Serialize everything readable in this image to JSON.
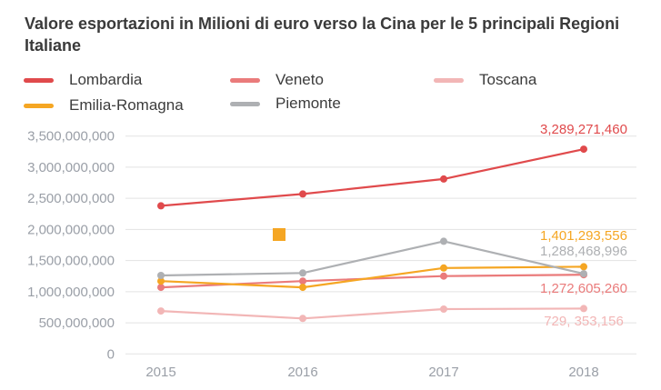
{
  "chart_data": {
    "type": "line",
    "title": "Valore esportazioni in Milioni di euro verso la Cina per le 5 principali Regioni Italiane",
    "xlabel": "",
    "ylabel": "",
    "x": [
      "2015",
      "2016",
      "2017",
      "2018"
    ],
    "ylim": [
      0,
      3500000000
    ],
    "yticks": [
      0,
      500000000,
      1000000000,
      1500000000,
      2000000000,
      2500000000,
      3000000000,
      3500000000
    ],
    "ytick_labels": [
      "0",
      "500,000,000",
      "1,000,000,000",
      "1,500,000,000",
      "2,000,000,000",
      "2,500,000,000",
      "3,000,000,000",
      "3,500,000,000"
    ],
    "grid": true,
    "legend_position": "top",
    "series": [
      {
        "name": "Lombardia",
        "color": "#e04a4c",
        "values": [
          2380000000,
          2570000000,
          2810000000,
          3289271460
        ],
        "end_label": "3,289,271,460"
      },
      {
        "name": "Veneto",
        "color": "#ea7b7b",
        "values": [
          1070000000,
          1170000000,
          1250000000,
          1272605260
        ],
        "end_label": "1,272,605,260"
      },
      {
        "name": "Toscana",
        "color": "#f2b6b6",
        "values": [
          690000000,
          570000000,
          720000000,
          729353156
        ],
        "end_label": "729, 353,156"
      },
      {
        "name": "Emilia-Romagna",
        "color": "#f5a623",
        "values": [
          1170000000,
          1070000000,
          1380000000,
          1401293556
        ],
        "end_label": "1,401,293,556"
      },
      {
        "name": "Piemonte",
        "color": "#aeb0b3",
        "values": [
          1260000000,
          1300000000,
          1810000000,
          1288468996
        ],
        "end_label": "1,288,468,996"
      }
    ]
  },
  "colors": {
    "title": "#3a3a3a",
    "axis_text": "#9a9fa7",
    "grid": "#e3e3e3",
    "marker_square": "#f5a623"
  }
}
